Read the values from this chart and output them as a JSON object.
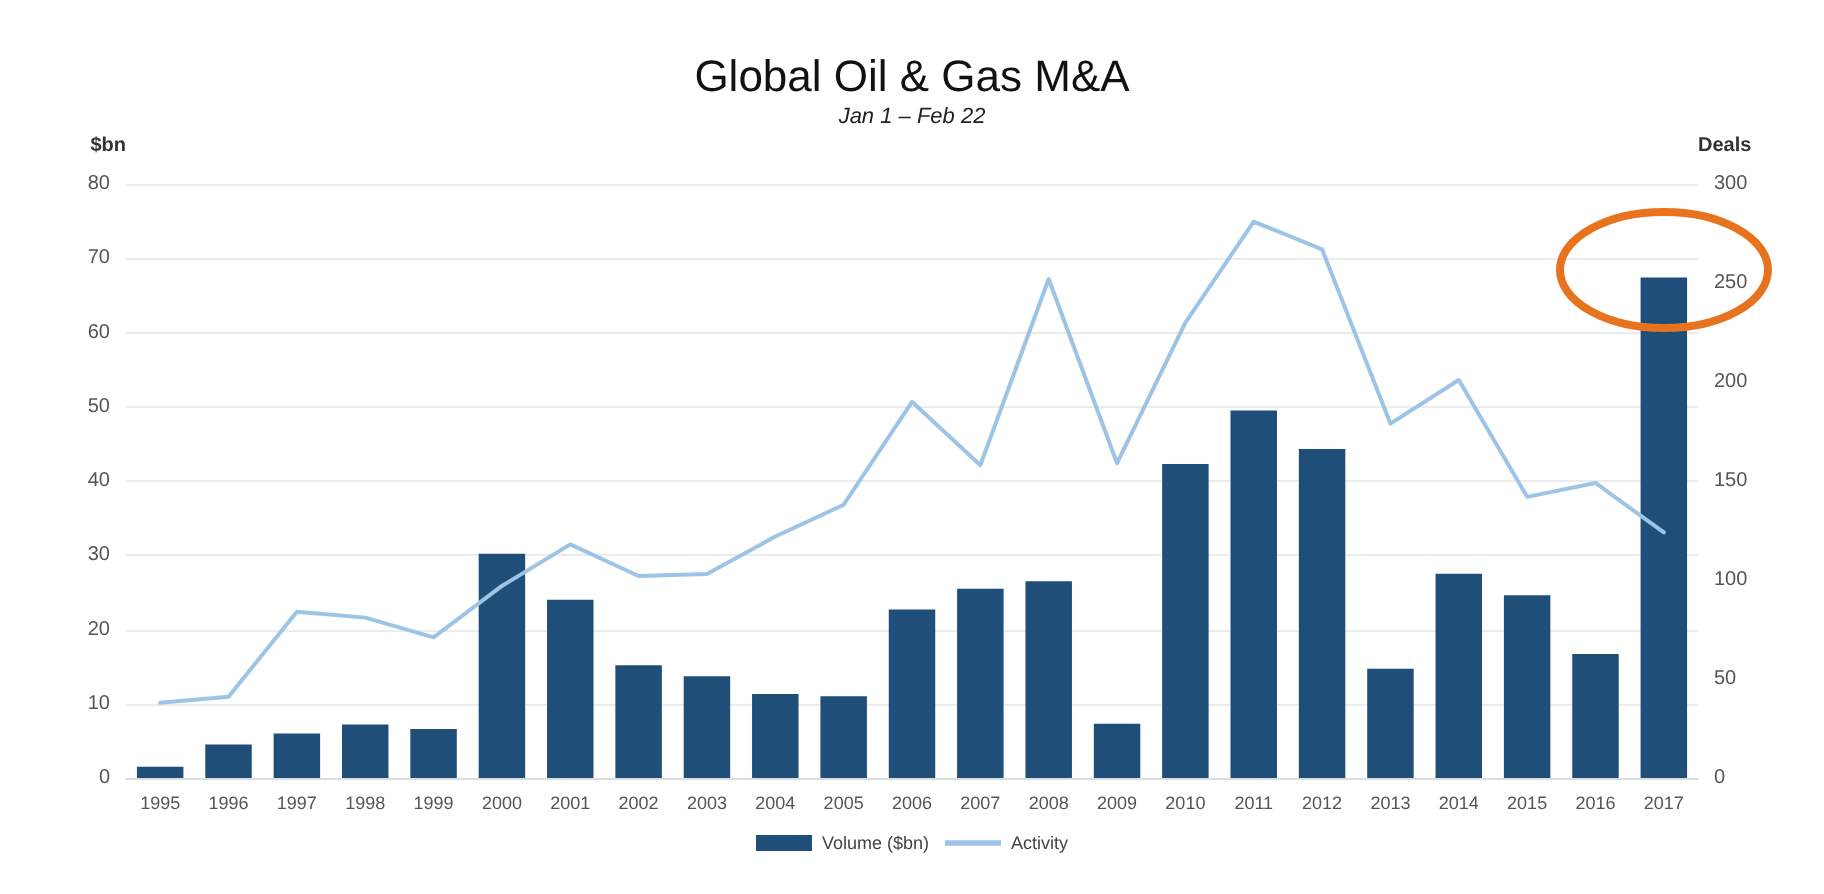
{
  "chart_data": {
    "type": "bar",
    "title": "Global Oil & Gas M&A",
    "subtitle": "Jan 1 – Feb 22",
    "ylabel": "$bn",
    "y2label": "Deals",
    "categories": [
      "1995",
      "1996",
      "1997",
      "1998",
      "1999",
      "2000",
      "2001",
      "2002",
      "2003",
      "2004",
      "2005",
      "2006",
      "2007",
      "2008",
      "2009",
      "2010",
      "2011",
      "2012",
      "2013",
      "2014",
      "2015",
      "2016",
      "2017"
    ],
    "series": [
      {
        "name": "Volume ($bn)",
        "color": "#1f4e79",
        "values": [
          1.5,
          4.5,
          6,
          7.2,
          6.6,
          30.2,
          24,
          15.2,
          13.7,
          11.3,
          11,
          22.7,
          25.5,
          26.5,
          7.3,
          42.3,
          49.5,
          44.3,
          14.7,
          27.5,
          24.6,
          16.7,
          67.4
        ]
      },
      {
        "name": "Activity",
        "type": "line",
        "axis": "y2",
        "color": "#9dc3e6",
        "values": [
          38,
          41,
          84,
          81,
          71,
          97,
          118,
          102,
          103,
          122,
          138,
          190,
          158,
          252,
          159,
          230,
          281,
          267,
          179,
          201,
          142,
          149,
          124
        ]
      }
    ],
    "ylim": [
      0,
      80
    ],
    "yticks": [
      0,
      10,
      20,
      30,
      40,
      50,
      60,
      70,
      80
    ],
    "y2lim": [
      0,
      300
    ],
    "y2ticks": [
      0,
      50,
      100,
      150,
      200,
      250,
      300
    ],
    "grid": "y",
    "legend": "bottom",
    "marker": "none",
    "line_style": "solid"
  }
}
